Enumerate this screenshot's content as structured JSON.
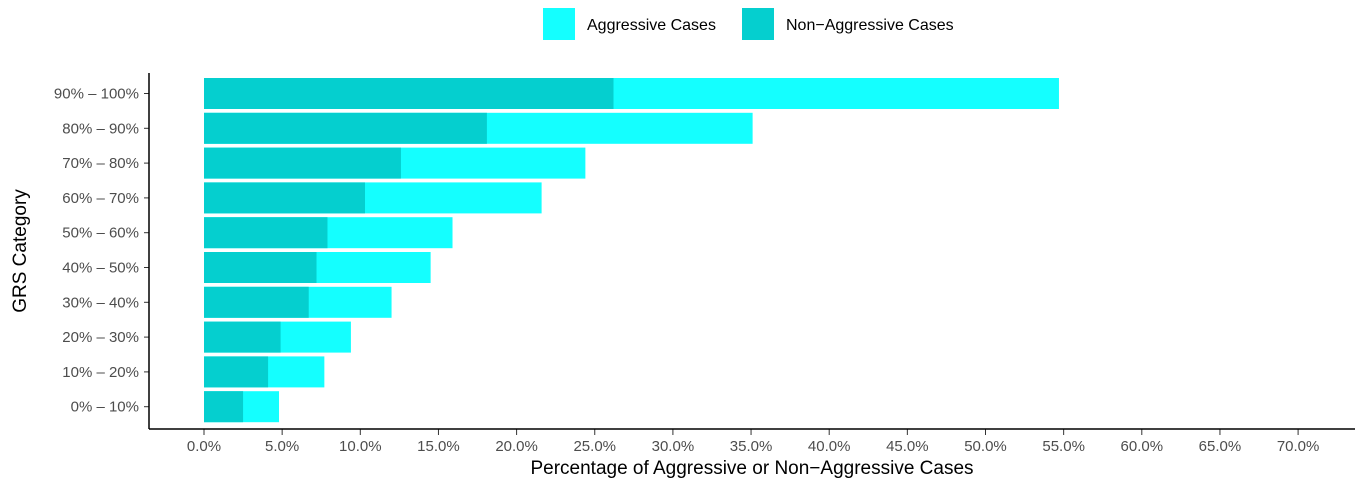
{
  "chart_data": {
    "type": "bar",
    "orientation": "horizontal",
    "stacking": "overlay",
    "categories": [
      "90% – 100%",
      "80% – 90%",
      "70% – 80%",
      "60% – 70%",
      "50% – 60%",
      "40% – 50%",
      "30% – 40%",
      "20% – 30%",
      "10% – 20%",
      "0% – 10%"
    ],
    "series": [
      {
        "name": "Aggressive Cases",
        "color": "#14FFFF",
        "values": [
          54.7,
          35.1,
          24.4,
          21.6,
          15.9,
          14.5,
          12.0,
          9.4,
          7.7,
          4.8
        ]
      },
      {
        "name": "Non-Aggressive Cases",
        "color": "#05CFCF",
        "values": [
          26.2,
          18.1,
          12.6,
          10.3,
          7.9,
          7.2,
          6.7,
          4.9,
          4.1,
          2.5
        ]
      }
    ],
    "legend_labels": [
      "Aggressive Cases",
      "Non−Aggressive Cases"
    ],
    "xlabel": "Percentage of Aggressive or Non−Aggressive Cases",
    "ylabel": "GRS Category",
    "xlim": [
      0,
      70
    ],
    "x_ticks": [
      "0.0%",
      "5.0%",
      "10.0%",
      "15.0%",
      "20.0%",
      "25.0%",
      "30.0%",
      "35.0%",
      "40.0%",
      "45.0%",
      "50.0%",
      "55.0%",
      "60.0%",
      "65.0%",
      "70.0%"
    ],
    "grid": false,
    "legend_position": "top"
  }
}
